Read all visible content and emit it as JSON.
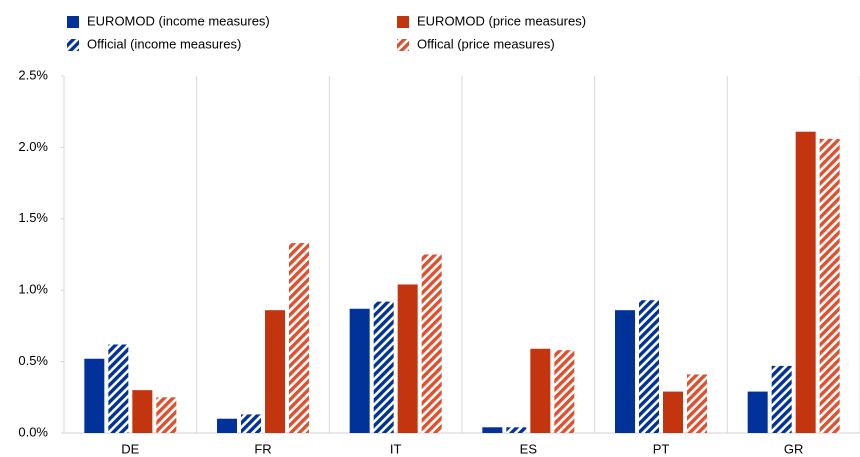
{
  "chart_data": {
    "type": "bar",
    "categories": [
      "DE",
      "FR",
      "IT",
      "ES",
      "PT",
      "GR"
    ],
    "series": [
      {
        "name": "EUROMOD (income measures)",
        "color": "#003299",
        "hatched": false,
        "values": [
          0.52,
          0.1,
          0.87,
          0.04,
          0.86,
          0.29
        ]
      },
      {
        "name": "Official (income measures)",
        "color": "#003299",
        "hatched": true,
        "values": [
          0.62,
          0.13,
          0.92,
          0.04,
          0.93,
          0.47
        ]
      },
      {
        "name": "EUROMOD (price measures)",
        "color": "#c3350f",
        "hatched": false,
        "values": [
          0.3,
          0.86,
          1.04,
          0.59,
          0.29,
          2.11
        ]
      },
      {
        "name": "Offical (price measures)",
        "color": "#e0502e",
        "hatched": true,
        "values": [
          0.25,
          1.33,
          1.25,
          0.58,
          0.41,
          2.06
        ]
      }
    ],
    "ylim": [
      0,
      2.5
    ],
    "yticks": [
      {
        "value": 0,
        "label": "0.0%"
      },
      {
        "value": 0.5,
        "label": "0.5%"
      },
      {
        "value": 1,
        "label": "1.0%"
      },
      {
        "value": 1.5,
        "label": "1.5%"
      },
      {
        "value": 2,
        "label": "2.0%"
      },
      {
        "value": 2.5,
        "label": "2.5%"
      }
    ],
    "grid": true
  }
}
